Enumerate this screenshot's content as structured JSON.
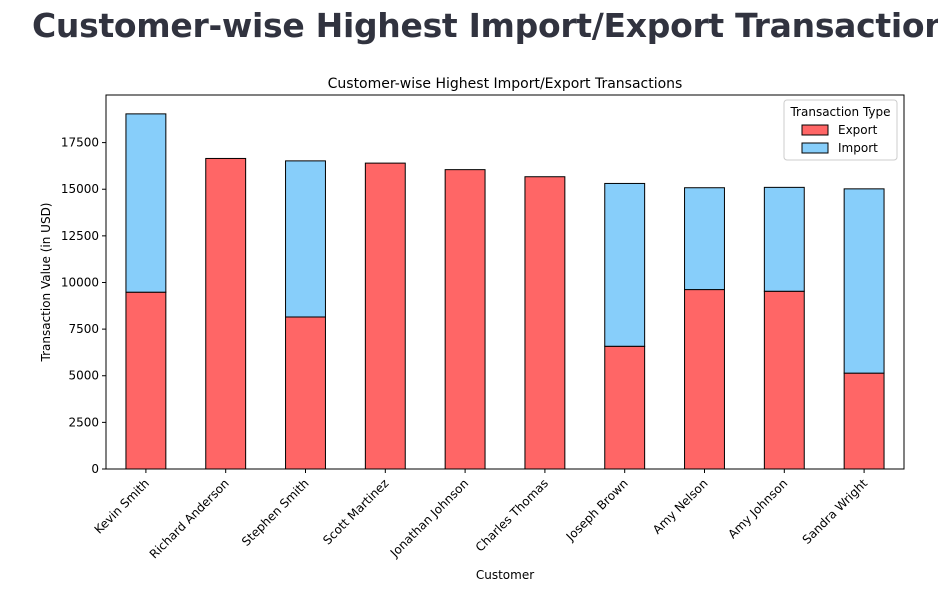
{
  "page": {
    "heading": "Customer-wise Highest Import/Export Transactions"
  },
  "chart_data": {
    "type": "bar",
    "stacked": true,
    "title": "Customer-wise Highest Import/Export Transactions",
    "xlabel": "Customer",
    "ylabel": "Transaction Value (in USD)",
    "categories": [
      "Kevin Smith",
      "Richard Anderson",
      "Stephen Smith",
      "Scott Martinez",
      "Jonathan Johnson",
      "Charles Thomas",
      "Joseph Brown",
      "Amy Nelson",
      "Amy Johnson",
      "Sandra Wright"
    ],
    "series": [
      {
        "name": "Export",
        "color": "#ff6666",
        "values": [
          9480,
          16650,
          8150,
          16400,
          16050,
          15670,
          6580,
          9620,
          9530,
          5140
        ]
      },
      {
        "name": "Import",
        "color": "#87cefa",
        "values": [
          9560,
          0,
          8370,
          0,
          0,
          0,
          8730,
          5460,
          5570,
          9880
        ]
      }
    ],
    "yticks": [
      0,
      2500,
      5000,
      7500,
      10000,
      12500,
      15000,
      17500
    ],
    "ylim": [
      0,
      20052
    ],
    "legend": {
      "title": "Transaction Type",
      "placement": "top-right"
    },
    "grid": false
  }
}
